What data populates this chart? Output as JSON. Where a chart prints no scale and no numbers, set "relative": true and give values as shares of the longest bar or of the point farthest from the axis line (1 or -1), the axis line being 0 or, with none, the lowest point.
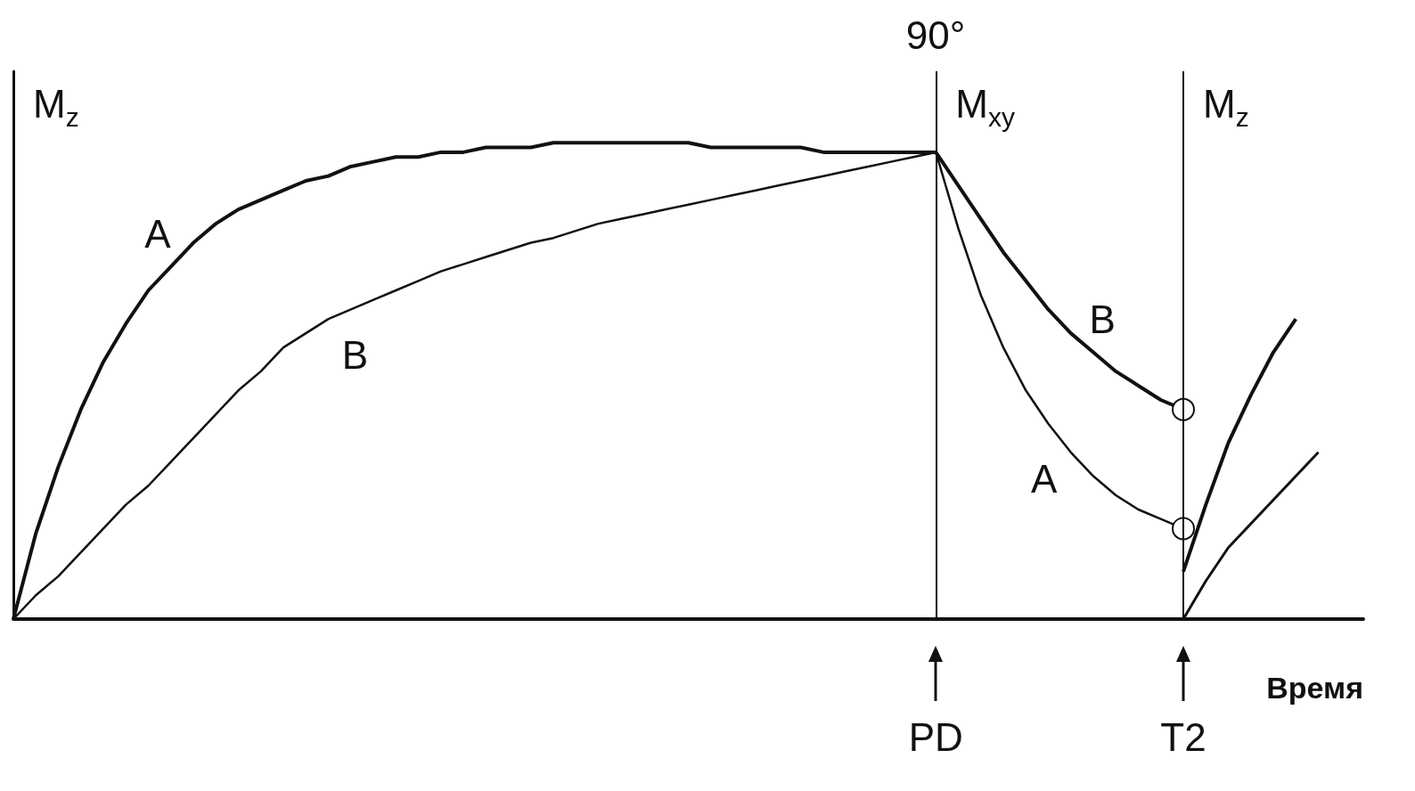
{
  "chart_data": {
    "type": "line",
    "relative": true,
    "xlabel": "Время",
    "tick_labels": "x",
    "legend": false,
    "grid": false,
    "marker": "none",
    "categories": [
      null,
      null,
      null,
      null,
      null,
      null,
      null,
      null,
      null,
      null,
      null,
      null,
      null,
      null,
      null,
      null,
      null,
      null,
      null,
      null,
      null,
      null,
      null,
      null,
      null,
      null,
      null,
      null,
      null,
      null,
      null,
      null,
      null,
      null,
      null,
      null,
      null,
      null,
      null,
      null,
      null,
      "PD",
      null,
      null,
      null,
      null,
      null,
      null,
      null,
      null,
      null,
      null,
      "T2",
      null,
      null,
      null,
      null,
      null,
      null,
      null,
      null
    ],
    "series": [
      {
        "name": "A",
        "color": "#111111",
        "values": [
          0,
          0.18,
          0.32,
          0.44,
          0.54,
          0.62,
          0.69,
          0.74,
          0.79,
          0.83,
          0.86,
          0.88,
          0.9,
          0.92,
          0.93,
          0.95,
          0.96,
          0.97,
          0.97,
          0.98,
          0.98,
          0.99,
          0.99,
          0.99,
          1,
          1,
          1,
          1,
          1,
          1,
          1,
          0.99,
          0.99,
          0.99,
          0.99,
          0.99,
          0.98,
          0.98,
          0.98,
          0.98,
          0.98,
          0.98,
          null,
          null,
          null,
          null,
          null,
          null,
          null,
          null,
          null,
          null,
          null,
          null,
          null,
          null,
          null,
          null,
          null,
          null,
          null
        ]
      },
      {
        "name": "B",
        "color": "#111111",
        "values": [
          0,
          0.05,
          0.09,
          0.14,
          0.19,
          0.24,
          0.28,
          0.33,
          0.38,
          0.43,
          0.48,
          0.52,
          0.57,
          0.6,
          0.63,
          0.65,
          0.67,
          0.69,
          0.71,
          0.73,
          0.745,
          0.76,
          0.775,
          0.79,
          0.8,
          0.815,
          0.83,
          0.84,
          0.85,
          0.86,
          0.87,
          0.88,
          0.89,
          0.9,
          0.91,
          0.92,
          0.93,
          0.94,
          0.95,
          0.96,
          0.97,
          0.98,
          null,
          null,
          null,
          null,
          null,
          null,
          null,
          null,
          null,
          null,
          null,
          null,
          null,
          null,
          null,
          null,
          null,
          null,
          null
        ]
      },
      {
        "name": "A",
        "color": "#111111",
        "values": [
          null,
          null,
          null,
          null,
          null,
          null,
          null,
          null,
          null,
          null,
          null,
          null,
          null,
          null,
          null,
          null,
          null,
          null,
          null,
          null,
          null,
          null,
          null,
          null,
          null,
          null,
          null,
          null,
          null,
          null,
          null,
          null,
          null,
          null,
          null,
          null,
          null,
          null,
          null,
          null,
          null,
          0.98,
          0.82,
          0.68,
          0.57,
          0.48,
          0.41,
          0.35,
          0.3,
          0.26,
          0.23,
          0.21,
          0.19,
          null,
          null,
          null,
          null,
          null,
          null,
          null,
          null
        ]
      },
      {
        "name": "B",
        "color": "#111111",
        "values": [
          null,
          null,
          null,
          null,
          null,
          null,
          null,
          null,
          null,
          null,
          null,
          null,
          null,
          null,
          null,
          null,
          null,
          null,
          null,
          null,
          null,
          null,
          null,
          null,
          null,
          null,
          null,
          null,
          null,
          null,
          null,
          null,
          null,
          null,
          null,
          null,
          null,
          null,
          null,
          null,
          null,
          0.98,
          0.91,
          0.84,
          0.77,
          0.71,
          0.65,
          0.6,
          0.56,
          0.52,
          0.49,
          0.46,
          0.44,
          null,
          null,
          null,
          null,
          null,
          null,
          null,
          null
        ]
      },
      {
        "color": "#111111",
        "values": [
          null,
          null,
          null,
          null,
          null,
          null,
          null,
          null,
          null,
          null,
          null,
          null,
          null,
          null,
          null,
          null,
          null,
          null,
          null,
          null,
          null,
          null,
          null,
          null,
          null,
          null,
          null,
          null,
          null,
          null,
          null,
          null,
          null,
          null,
          null,
          null,
          null,
          null,
          null,
          null,
          null,
          null,
          null,
          null,
          null,
          null,
          null,
          null,
          null,
          null,
          null,
          null,
          0.1,
          0.24,
          0.37,
          0.47,
          0.56,
          0.63,
          null,
          null,
          null
        ]
      },
      {
        "color": "#111111",
        "marker": "circle",
        "values": [
          null,
          null,
          null,
          null,
          null,
          null,
          null,
          null,
          null,
          null,
          null,
          null,
          null,
          null,
          null,
          null,
          null,
          null,
          null,
          null,
          null,
          null,
          null,
          null,
          null,
          null,
          null,
          null,
          null,
          null,
          null,
          null,
          null,
          null,
          null,
          null,
          null,
          null,
          null,
          null,
          null,
          null,
          null,
          null,
          null,
          null,
          null,
          null,
          null,
          null,
          null,
          null,
          0.19,
          null,
          null,
          null,
          null,
          null,
          null,
          null,
          null
        ]
      },
      {
        "color": "#111111",
        "marker": "circle",
        "values": [
          null,
          null,
          null,
          null,
          null,
          null,
          null,
          null,
          null,
          null,
          null,
          null,
          null,
          null,
          null,
          null,
          null,
          null,
          null,
          null,
          null,
          null,
          null,
          null,
          null,
          null,
          null,
          null,
          null,
          null,
          null,
          null,
          null,
          null,
          null,
          null,
          null,
          null,
          null,
          null,
          null,
          null,
          null,
          null,
          null,
          null,
          null,
          null,
          null,
          null,
          null,
          null,
          0.44,
          null,
          null,
          null,
          null,
          null,
          null,
          null,
          null
        ]
      },
      {
        "color": "#111111",
        "values": [
          null,
          null,
          null,
          null,
          null,
          null,
          null,
          null,
          null,
          null,
          null,
          null,
          null,
          null,
          null,
          null,
          null,
          null,
          null,
          null,
          null,
          null,
          null,
          null,
          null,
          null,
          null,
          null,
          null,
          null,
          null,
          null,
          null,
          null,
          null,
          null,
          null,
          null,
          null,
          null,
          null,
          null,
          null,
          null,
          null,
          null,
          null,
          null,
          null,
          null,
          null,
          null,
          0,
          0.08,
          0.15,
          0.2,
          0.25,
          0.3,
          0.35,
          null,
          null
        ]
      }
    ],
    "ref_lines": [
      {
        "axis": "x",
        "value": "PD",
        "color": "#111111"
      },
      {
        "axis": "x",
        "value": "T2",
        "color": "#111111"
      }
    ],
    "annotations": [
      "M$_{z}$",
      "90°",
      "M$_{xy}$",
      "M$_{z}$"
    ]
  }
}
